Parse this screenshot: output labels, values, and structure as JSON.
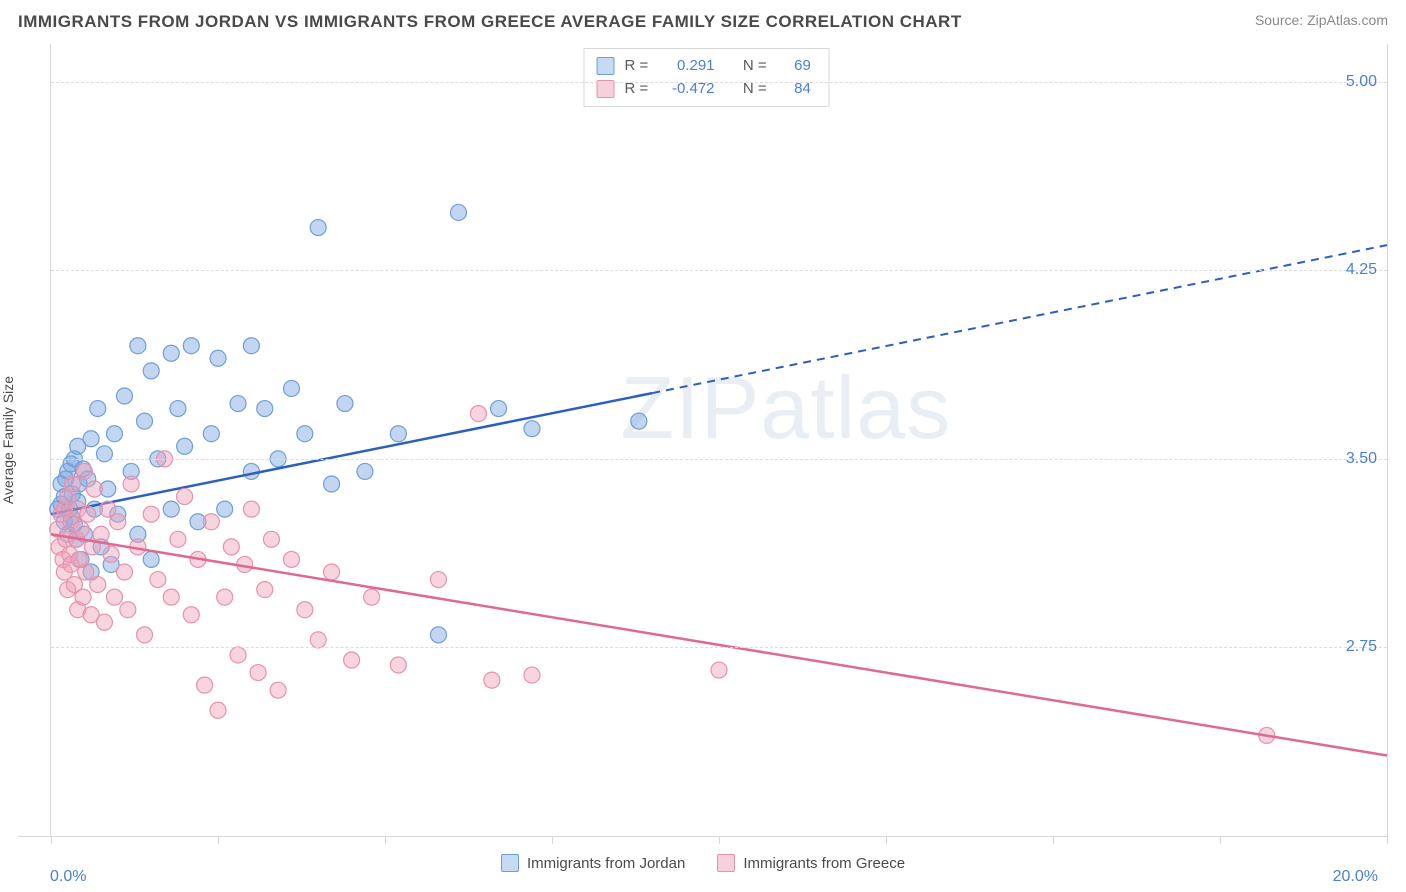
{
  "title": "IMMIGRANTS FROM JORDAN VS IMMIGRANTS FROM GREECE AVERAGE FAMILY SIZE CORRELATION CHART",
  "source_label": "Source: ",
  "source_name": "ZipAtlas.com",
  "watermark": "ZIPatlas",
  "chart": {
    "type": "scatter",
    "xlim": [
      0.0,
      20.0
    ],
    "ylim": [
      2.0,
      5.15
    ],
    "x_tick_percent_step": 2.5,
    "yticks": [
      2.75,
      3.5,
      4.25,
      5.0
    ],
    "ytick_labels": [
      "2.75",
      "3.50",
      "4.25",
      "5.00"
    ],
    "xmin_label": "0.0%",
    "xmax_label": "20.0%",
    "ylabel": "Average Family Size",
    "grid_color": "#dcdcdc",
    "border_color": "#d8d8d8",
    "background_color": "#ffffff",
    "tick_label_color": "#4a7fd6",
    "series": [
      {
        "name": "Immigrants from Jordan",
        "color_fill": "rgba(120,165,225,0.45)",
        "color_stroke": "#6f9fd8",
        "line_color": "#2b5fc0",
        "swatch_fill": "#c6daf2",
        "swatch_border": "#6f9fd8",
        "marker_radius": 8,
        "R": "0.291",
        "N": "69",
        "regression": {
          "x0": 0.0,
          "y0": 3.28,
          "x1": 20.0,
          "y1": 4.35,
          "solid_max_x": 9.0
        },
        "points": [
          [
            0.1,
            3.3
          ],
          [
            0.15,
            3.32
          ],
          [
            0.15,
            3.4
          ],
          [
            0.2,
            3.25
          ],
          [
            0.2,
            3.35
          ],
          [
            0.22,
            3.42
          ],
          [
            0.25,
            3.2
          ],
          [
            0.25,
            3.45
          ],
          [
            0.28,
            3.3
          ],
          [
            0.3,
            3.27
          ],
          [
            0.3,
            3.48
          ],
          [
            0.32,
            3.36
          ],
          [
            0.35,
            3.24
          ],
          [
            0.35,
            3.5
          ],
          [
            0.38,
            3.18
          ],
          [
            0.4,
            3.33
          ],
          [
            0.4,
            3.55
          ],
          [
            0.42,
            3.4
          ],
          [
            0.45,
            3.1
          ],
          [
            0.48,
            3.46
          ],
          [
            0.5,
            3.2
          ],
          [
            0.55,
            3.42
          ],
          [
            0.6,
            3.05
          ],
          [
            0.6,
            3.58
          ],
          [
            0.65,
            3.3
          ],
          [
            0.7,
            3.7
          ],
          [
            0.75,
            3.15
          ],
          [
            0.8,
            3.52
          ],
          [
            0.85,
            3.38
          ],
          [
            0.9,
            3.08
          ],
          [
            0.95,
            3.6
          ],
          [
            1.0,
            3.28
          ],
          [
            1.1,
            3.75
          ],
          [
            1.2,
            3.45
          ],
          [
            1.3,
            3.95
          ],
          [
            1.3,
            3.2
          ],
          [
            1.4,
            3.65
          ],
          [
            1.5,
            3.85
          ],
          [
            1.5,
            3.1
          ],
          [
            1.6,
            3.5
          ],
          [
            1.8,
            3.92
          ],
          [
            1.8,
            3.3
          ],
          [
            1.9,
            3.7
          ],
          [
            2.0,
            3.55
          ],
          [
            2.1,
            3.95
          ],
          [
            2.2,
            3.25
          ],
          [
            2.4,
            3.6
          ],
          [
            2.5,
            3.9
          ],
          [
            2.6,
            3.3
          ],
          [
            2.8,
            3.72
          ],
          [
            3.0,
            3.45
          ],
          [
            3.0,
            3.95
          ],
          [
            3.2,
            3.7
          ],
          [
            3.4,
            3.5
          ],
          [
            3.6,
            3.78
          ],
          [
            3.8,
            3.6
          ],
          [
            4.0,
            4.42
          ],
          [
            4.2,
            3.4
          ],
          [
            4.4,
            3.72
          ],
          [
            4.7,
            3.45
          ],
          [
            5.2,
            3.6
          ],
          [
            5.8,
            2.8
          ],
          [
            6.1,
            4.48
          ],
          [
            6.7,
            3.7
          ],
          [
            7.2,
            3.62
          ],
          [
            8.8,
            3.65
          ]
        ]
      },
      {
        "name": "Immigrants from Greece",
        "color_fill": "rgba(240,160,185,0.45)",
        "color_stroke": "#e593ac",
        "line_color": "#e06a8f",
        "swatch_fill": "#f6d0db",
        "swatch_border": "#e593ac",
        "marker_radius": 8,
        "R": "-0.472",
        "N": "84",
        "regression": {
          "x0": 0.0,
          "y0": 3.2,
          "x1": 20.0,
          "y1": 2.32,
          "solid_max_x": 20.0
        },
        "points": [
          [
            0.1,
            3.22
          ],
          [
            0.12,
            3.15
          ],
          [
            0.15,
            3.28
          ],
          [
            0.18,
            3.1
          ],
          [
            0.2,
            3.05
          ],
          [
            0.2,
            3.3
          ],
          [
            0.22,
            3.18
          ],
          [
            0.25,
            3.35
          ],
          [
            0.25,
            2.98
          ],
          [
            0.28,
            3.12
          ],
          [
            0.3,
            3.08
          ],
          [
            0.3,
            3.25
          ],
          [
            0.32,
            3.4
          ],
          [
            0.35,
            3.0
          ],
          [
            0.38,
            3.18
          ],
          [
            0.4,
            2.9
          ],
          [
            0.4,
            3.3
          ],
          [
            0.42,
            3.1
          ],
          [
            0.45,
            3.22
          ],
          [
            0.48,
            2.95
          ],
          [
            0.5,
            3.45
          ],
          [
            0.52,
            3.05
          ],
          [
            0.55,
            3.28
          ],
          [
            0.6,
            2.88
          ],
          [
            0.62,
            3.15
          ],
          [
            0.65,
            3.38
          ],
          [
            0.7,
            3.0
          ],
          [
            0.75,
            3.2
          ],
          [
            0.8,
            2.85
          ],
          [
            0.85,
            3.3
          ],
          [
            0.9,
            3.12
          ],
          [
            0.95,
            2.95
          ],
          [
            1.0,
            3.25
          ],
          [
            1.1,
            3.05
          ],
          [
            1.15,
            2.9
          ],
          [
            1.2,
            3.4
          ],
          [
            1.3,
            3.15
          ],
          [
            1.4,
            2.8
          ],
          [
            1.5,
            3.28
          ],
          [
            1.6,
            3.02
          ],
          [
            1.7,
            3.5
          ],
          [
            1.8,
            2.95
          ],
          [
            1.9,
            3.18
          ],
          [
            2.0,
            3.35
          ],
          [
            2.1,
            2.88
          ],
          [
            2.2,
            3.1
          ],
          [
            2.3,
            2.6
          ],
          [
            2.4,
            3.25
          ],
          [
            2.5,
            2.5
          ],
          [
            2.6,
            2.95
          ],
          [
            2.7,
            3.15
          ],
          [
            2.8,
            2.72
          ],
          [
            2.9,
            3.08
          ],
          [
            3.0,
            3.3
          ],
          [
            3.1,
            2.65
          ],
          [
            3.2,
            2.98
          ],
          [
            3.3,
            3.18
          ],
          [
            3.4,
            2.58
          ],
          [
            3.6,
            3.1
          ],
          [
            3.8,
            2.9
          ],
          [
            4.0,
            2.78
          ],
          [
            4.2,
            3.05
          ],
          [
            4.5,
            2.7
          ],
          [
            4.8,
            2.95
          ],
          [
            5.2,
            2.68
          ],
          [
            5.8,
            3.02
          ],
          [
            6.4,
            3.68
          ],
          [
            6.6,
            2.62
          ],
          [
            7.2,
            2.64
          ],
          [
            10.0,
            2.66
          ],
          [
            18.2,
            2.4
          ]
        ]
      }
    ],
    "stats_labels": {
      "r": "R =",
      "n": "N ="
    }
  },
  "bottom_legend_labels": [
    "Immigrants from Jordan",
    "Immigrants from Greece"
  ]
}
